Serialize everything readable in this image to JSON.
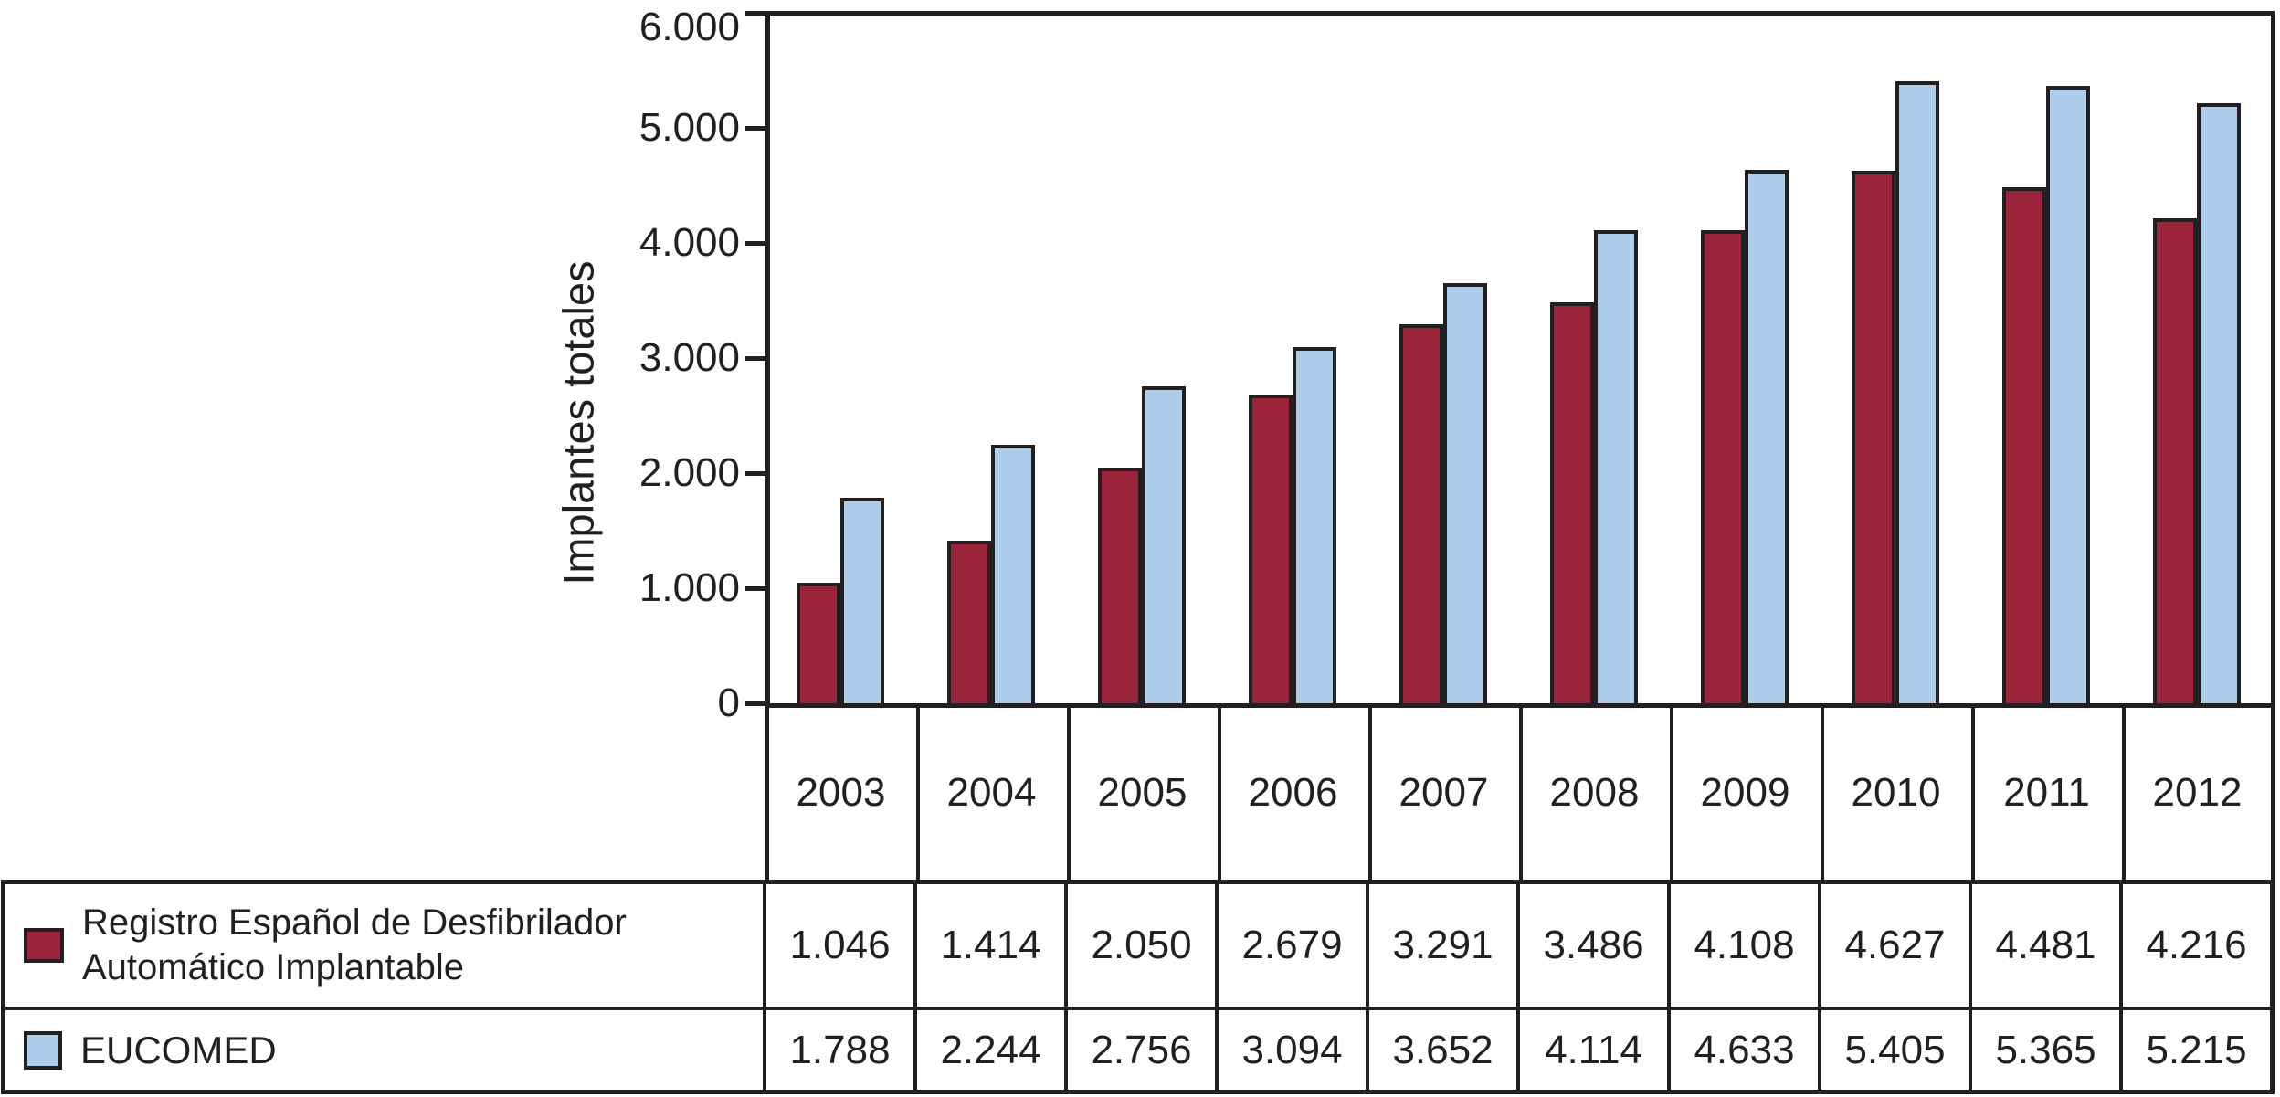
{
  "colors": {
    "registro_fill": "#9B2339",
    "eucomed_fill": "#AECDEA",
    "line": "#231F20",
    "background": "#FFFFFF"
  },
  "chart_data": {
    "type": "bar",
    "categories": [
      "2003",
      "2004",
      "2005",
      "2006",
      "2007",
      "2008",
      "2009",
      "2010",
      "2011",
      "2012"
    ],
    "series": [
      {
        "name": "Registro Español de Desfibrilador Automático Implantable",
        "label_lines": [
          "Registro Español de Desfibrilador",
          "Automático Implantable"
        ],
        "color": "#9B2339",
        "values": [
          1046,
          1414,
          2050,
          2679,
          3291,
          3486,
          4108,
          4627,
          4481,
          4216
        ],
        "display_values": [
          "1.046",
          "1.414",
          "2.050",
          "2.679",
          "3.291",
          "3.486",
          "4.108",
          "4.627",
          "4.481",
          "4.216"
        ]
      },
      {
        "name": "EUCOMED",
        "label_lines": [
          "EUCOMED"
        ],
        "color": "#AECDEA",
        "values": [
          1788,
          2244,
          2756,
          3094,
          3652,
          4114,
          4633,
          5405,
          5365,
          5215
        ],
        "display_values": [
          "1.788",
          "2.244",
          "2.756",
          "3.094",
          "3.652",
          "4.114",
          "4.633",
          "5.405",
          "5.365",
          "5.215"
        ]
      }
    ],
    "xlabel": "",
    "ylabel": "Implantes totales",
    "ylim": [
      0,
      6000
    ],
    "yticks": [
      0,
      1000,
      2000,
      3000,
      4000,
      5000,
      6000
    ],
    "ytick_labels": [
      "0",
      "1.000",
      "2.000",
      "3.000",
      "4.000",
      "5.000",
      "6.000"
    ],
    "grid": false,
    "legend_position": "table-bottom",
    "bar_outline_color": "#231F20"
  }
}
